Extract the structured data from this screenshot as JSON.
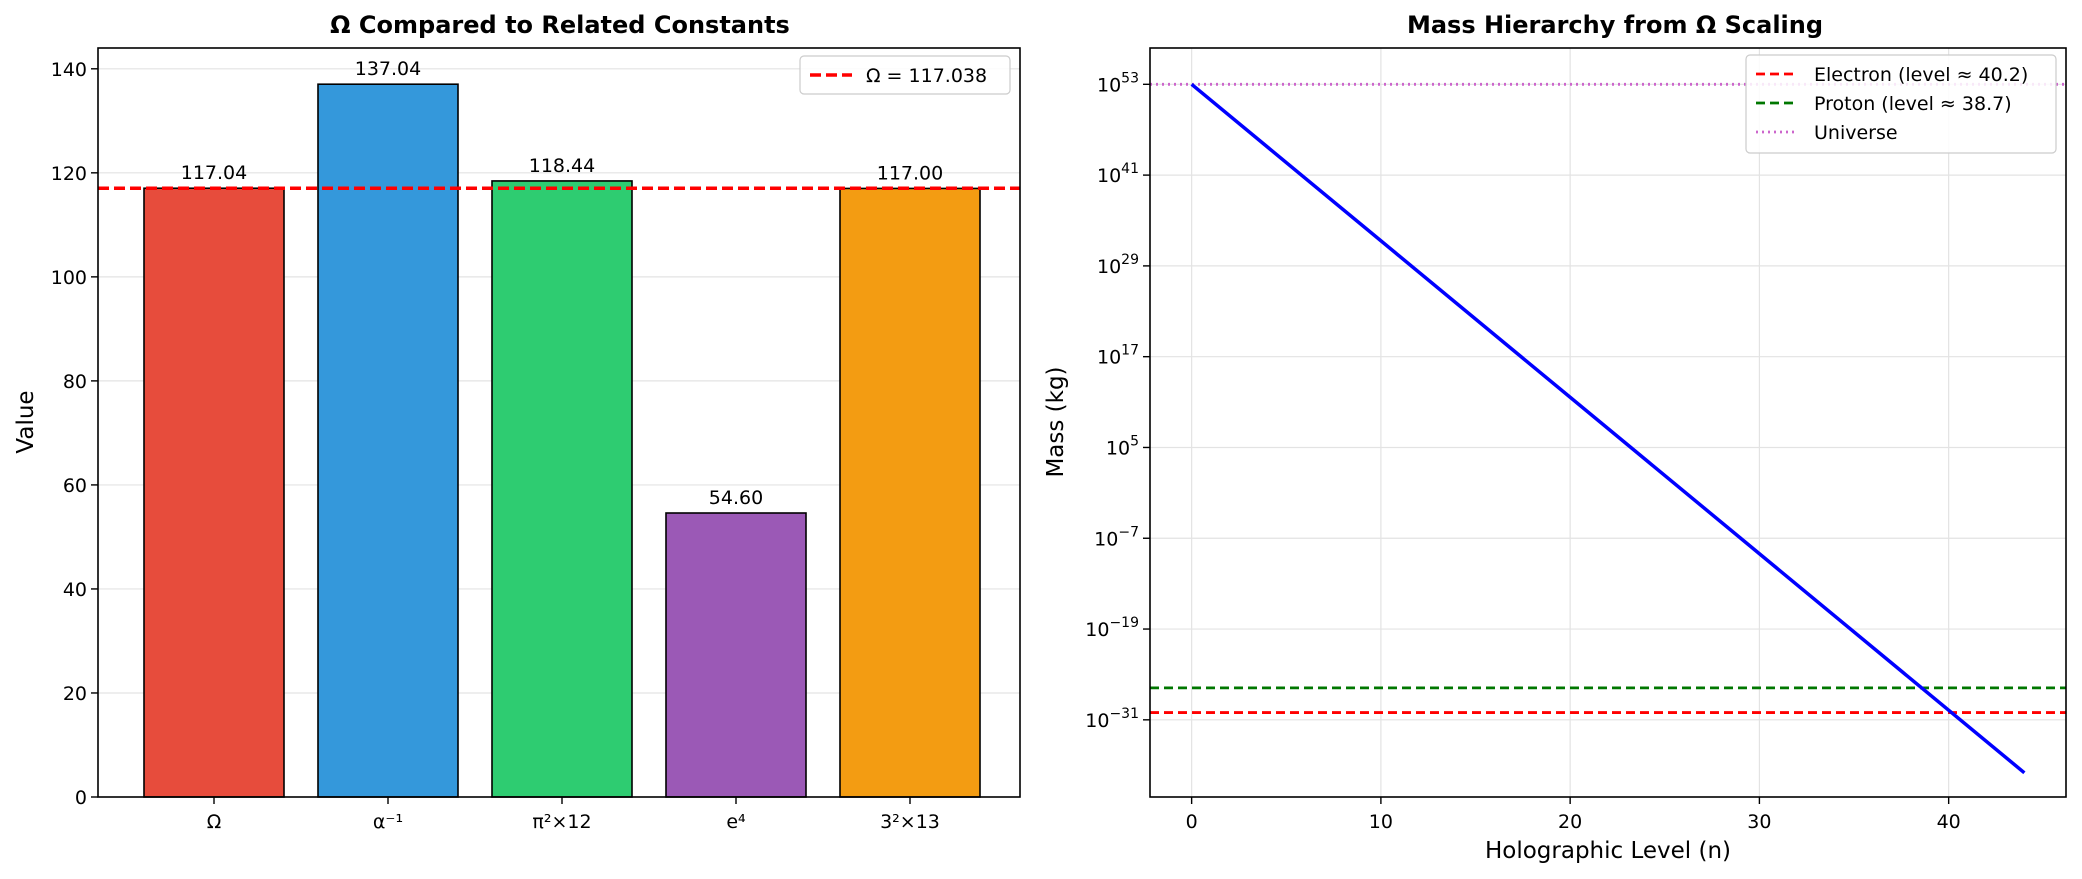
{
  "chart_data": [
    {
      "type": "bar",
      "title": "Ω Compared to Related Constants",
      "xlabel": "",
      "ylabel": "Value",
      "categories": [
        "Ω",
        "α⁻¹",
        "π²×12",
        "e⁴",
        "3²×13"
      ],
      "values": [
        117.04,
        137.04,
        118.44,
        54.6,
        117.0
      ],
      "value_labels": [
        "117.04",
        "137.04",
        "118.44",
        "54.60",
        "117.00"
      ],
      "colors": [
        "#e74c3c",
        "#3498db",
        "#2ecc71",
        "#9b59b6",
        "#f39c12"
      ],
      "ylim": [
        0,
        144
      ],
      "yticks": [
        0,
        20,
        40,
        60,
        80,
        100,
        120,
        140
      ],
      "reference_line": {
        "label": "Ω = 117.038",
        "value": 117.038,
        "color": "#ff0000",
        "style": "dashed"
      },
      "grid": true,
      "legend_position": "top-right"
    },
    {
      "type": "line",
      "title": "Mass Hierarchy from Ω Scaling",
      "xlabel": "Holographic Level (n)",
      "ylabel": "Mass (kg)",
      "y_scale": "log",
      "xlim": [
        -2.2,
        46.2
      ],
      "ylim_log10": [
        -41.2,
        57.8
      ],
      "xticks": [
        0,
        10,
        20,
        30,
        40
      ],
      "yticks_log10": [
        53,
        41,
        29,
        17,
        5,
        -7,
        -19,
        -31
      ],
      "series": [
        {
          "x": [
            0,
            44
          ],
          "log10_y": [
            53,
            -38
          ],
          "color": "#0000ff",
          "style": "solid"
        }
      ],
      "reference_lines": [
        {
          "label": "Electron (level ≈ 40.2)",
          "log10_y": -30.04,
          "color": "#ff0000",
          "style": "dashed"
        },
        {
          "label": "Proton (level ≈ 38.7)",
          "log10_y": -26.78,
          "color": "#007700",
          "style": "dashed"
        },
        {
          "label": "Universe",
          "log10_y": 53,
          "color": "#cc66cc",
          "style": "dotted"
        }
      ],
      "grid": true,
      "legend_position": "top-right"
    }
  ]
}
